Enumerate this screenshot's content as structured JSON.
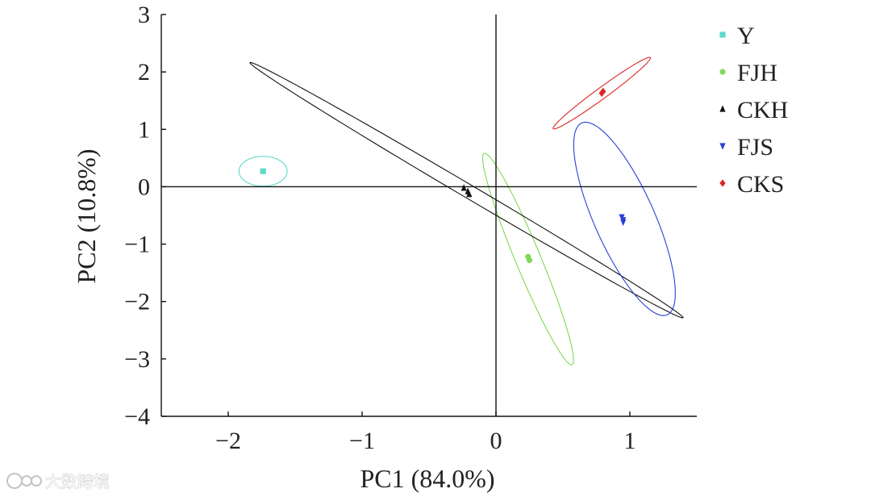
{
  "chart_data": {
    "type": "scatter",
    "title": "",
    "xlabel": "PC1 (84.0%)",
    "ylabel": "PC2 (10.8%)",
    "xlim": [
      -2.5,
      1.5
    ],
    "ylim": [
      -4,
      3
    ],
    "xticks": [
      -2,
      -1,
      0,
      1
    ],
    "yticks": [
      3,
      2,
      1,
      0,
      -1,
      -2,
      -3,
      -4
    ],
    "xtick_labels": [
      "−2",
      "−1",
      "0",
      "1"
    ],
    "ytick_labels": [
      "3",
      "2",
      "1",
      "0",
      "−1",
      "−2",
      "−3",
      "−4"
    ],
    "zero_lines": true,
    "grid": false,
    "legend_position": "top-right, outside plot",
    "series": [
      {
        "name": "Y",
        "color": "#5fd9c8",
        "marker": "square",
        "points": [
          [
            -1.74,
            0.27
          ]
        ],
        "ellipse": {
          "cx": -1.74,
          "cy": 0.27,
          "rx": 0.18,
          "ry": 0.26,
          "angle_deg": 0
        }
      },
      {
        "name": "FJH",
        "color": "#7ed957",
        "marker": "circle",
        "points": [
          [
            0.24,
            -1.22
          ],
          [
            0.25,
            -1.28
          ]
        ],
        "ellipse": {
          "cx": 0.24,
          "cy": -1.26,
          "rx": 0.1,
          "ry": 1.87,
          "angle_deg": 10
        }
      },
      {
        "name": "CKH",
        "color": "#111111",
        "marker": "triangle-up",
        "points": [
          [
            -0.24,
            -0.02
          ],
          [
            -0.21,
            -0.08
          ],
          [
            -0.2,
            -0.13
          ]
        ],
        "ellipse": {
          "cx": -0.22,
          "cy": -0.06,
          "rx": 0.08,
          "ry": 2.75,
          "angle_deg": 36
        }
      },
      {
        "name": "FJS",
        "color": "#2b3fd6",
        "marker": "triangle-down",
        "points": [
          [
            0.94,
            -0.53
          ],
          [
            0.95,
            -0.58
          ],
          [
            0.95,
            -0.62
          ]
        ],
        "ellipse": {
          "cx": 0.96,
          "cy": -0.56,
          "rx": 0.24,
          "ry": 1.71,
          "angle_deg": 10
        }
      },
      {
        "name": "CKS",
        "color": "#e02424",
        "marker": "diamond",
        "points": [
          [
            0.79,
            1.63
          ],
          [
            0.8,
            1.66
          ]
        ],
        "ellipse": {
          "cx": 0.79,
          "cy": 1.63,
          "rx": 0.06,
          "ry": 0.72,
          "angle_deg": -30
        }
      }
    ]
  },
  "watermark": {
    "logo_text": "大数跨境"
  }
}
